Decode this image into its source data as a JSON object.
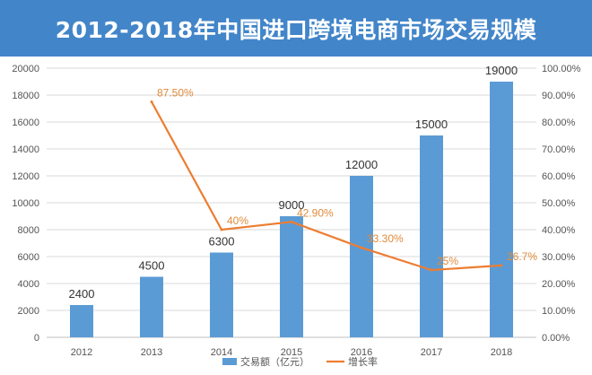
{
  "title": "2012-2018年中国进口跨境电商市场交易规模",
  "colors": {
    "title_bg": "#4285c9",
    "bar": "#5b9bd5",
    "line": "#ed7d31",
    "grid": "#d9d9d9"
  },
  "chart_data": {
    "type": "bar",
    "title": "2012-2018年中国进口跨境电商市场交易规模",
    "categories": [
      "2012",
      "2013",
      "2014",
      "2015",
      "2016",
      "2017",
      "2018"
    ],
    "series": [
      {
        "name": "交易额（亿元）",
        "type": "bar",
        "axis": "left",
        "values": [
          2400,
          4500,
          6300,
          9000,
          12000,
          15000,
          19000
        ],
        "labels": [
          "2400",
          "4500",
          "6300",
          "9000",
          "12000",
          "15000",
          "19000"
        ]
      },
      {
        "name": "增长率",
        "type": "line",
        "axis": "right",
        "values": [
          null,
          87.5,
          40,
          42.9,
          33.3,
          25,
          26.7
        ],
        "labels": [
          "",
          "87.50%",
          "40%",
          "42.90%",
          "33.30%",
          "25%",
          "26.7%"
        ]
      }
    ],
    "y_left": {
      "min": 0,
      "max": 20000,
      "step": 2000,
      "ticks": [
        "0",
        "2000",
        "4000",
        "6000",
        "8000",
        "10000",
        "12000",
        "14000",
        "16000",
        "18000",
        "20000"
      ]
    },
    "y_right": {
      "min": 0,
      "max": 100,
      "step": 10,
      "ticks": [
        "0.00%",
        "10.00%",
        "20.00%",
        "30.00%",
        "40.00%",
        "50.00%",
        "60.00%",
        "70.00%",
        "80.00%",
        "90.00%",
        "100.00%"
      ]
    },
    "grid": true,
    "legend_position": "bottom"
  }
}
